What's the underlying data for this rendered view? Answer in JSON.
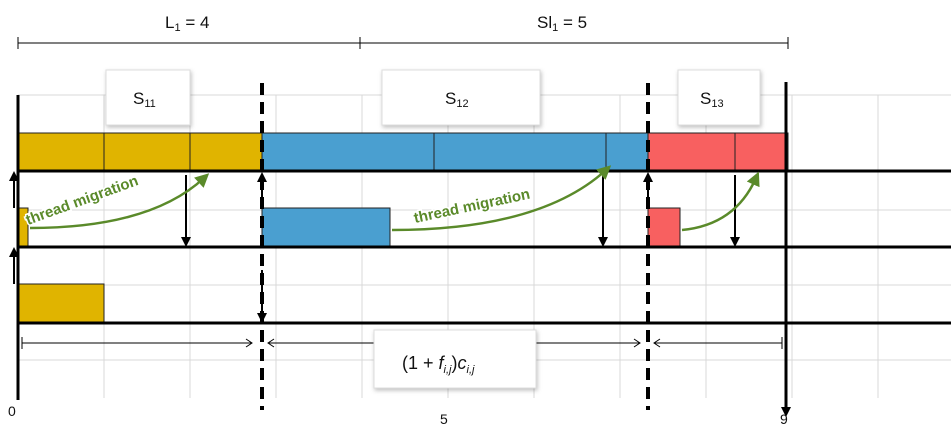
{
  "top_labels": {
    "l1": {
      "main": "L",
      "sub": "1",
      "rest": " = 4"
    },
    "sl1": {
      "main": "Sl",
      "sub": "1",
      "rest": " = 5"
    }
  },
  "segments": [
    {
      "main": "S",
      "sub": "11"
    },
    {
      "main": "S",
      "sub": "12"
    },
    {
      "main": "S",
      "sub": "13"
    }
  ],
  "migration_labels": [
    "thread migration",
    "thread migration"
  ],
  "formula": {
    "open": "(1 + ",
    "f": "f",
    "fsub": "i,j",
    "close": ")",
    "c": "c",
    "csub": "i,j"
  },
  "axis_ticks": [
    "0",
    "5",
    "9"
  ],
  "colors": {
    "yellow": "#e0b400",
    "blue": "#4a9fd0",
    "red": "#f86060",
    "green": "#5a8a2a",
    "grid": "#d8d8d8"
  }
}
